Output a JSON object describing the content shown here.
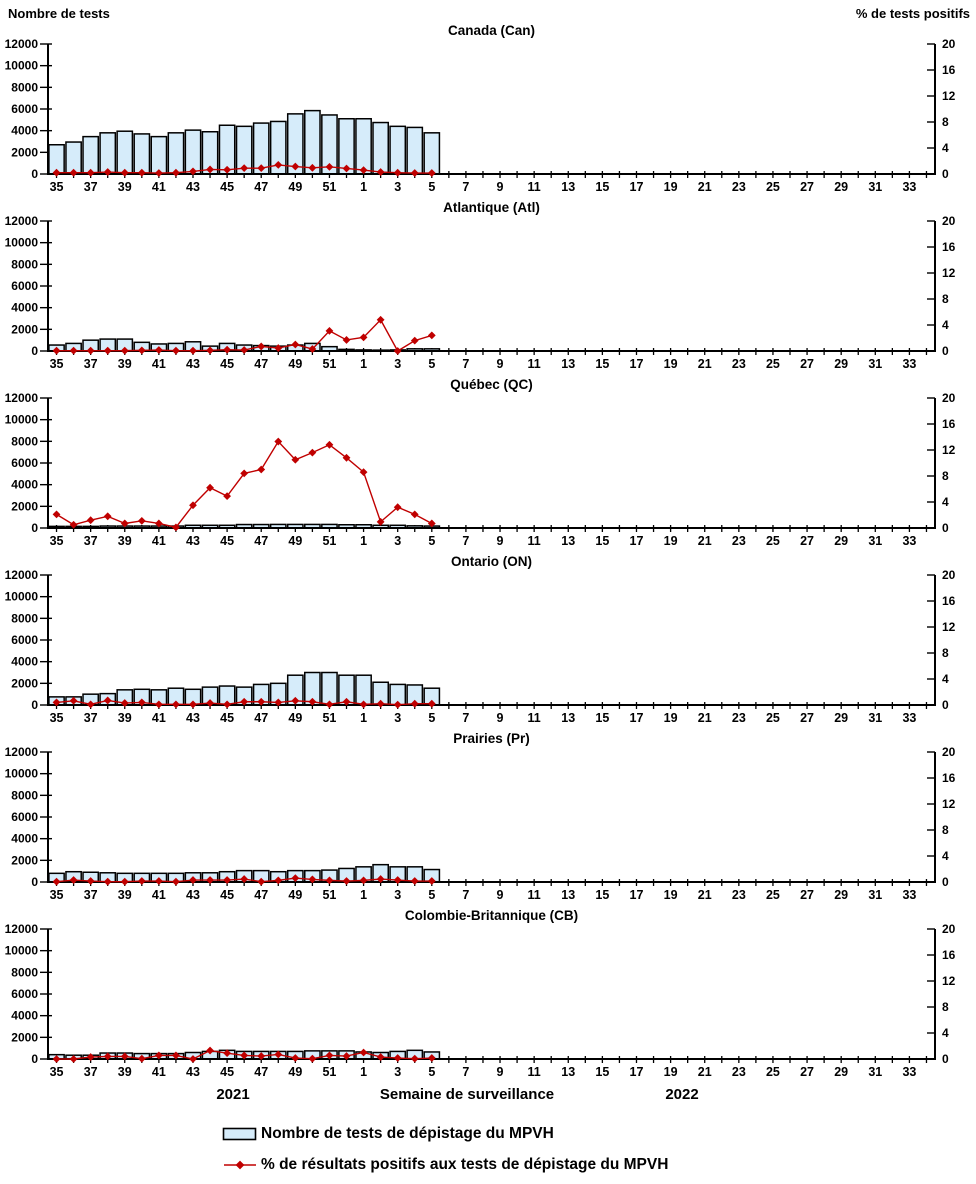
{
  "header": {
    "left_axis_title": "Nombre de tests",
    "right_axis_title": "% de tests positifs"
  },
  "footer": {
    "year_left": "2021",
    "xaxis_title": "Semaine de surveillance",
    "year_right": "2022",
    "legend": [
      {
        "swatch": "bar",
        "label": "Nombre de tests de dépistage du MPVH"
      },
      {
        "swatch": "line",
        "label": "% de résultats positifs aux tests de dépistage du MPVH"
      }
    ]
  },
  "colors": {
    "bar_fill": "#D6ECFA",
    "bar_border": "#000000",
    "line": "#C00000",
    "marker": "#C00000",
    "axis": "#000000"
  },
  "axes": {
    "left_ticks": [
      0,
      2000,
      4000,
      6000,
      8000,
      10000,
      12000
    ],
    "left_max": 12000,
    "right_ticks": [
      0,
      4,
      8,
      12,
      16,
      20
    ],
    "right_max": 20,
    "week_sequence": [
      35,
      36,
      37,
      38,
      39,
      40,
      41,
      42,
      43,
      44,
      45,
      46,
      47,
      48,
      49,
      50,
      51,
      52,
      1,
      2,
      3,
      4,
      5,
      6,
      7,
      8,
      9,
      10,
      11,
      12,
      13,
      14,
      15,
      16,
      17,
      18,
      19,
      20,
      21,
      22,
      23,
      24,
      25,
      26,
      27,
      28,
      29,
      30,
      31,
      32,
      33,
      34
    ],
    "labeled_weeks": [
      35,
      37,
      39,
      41,
      43,
      45,
      47,
      49,
      51,
      1,
      3,
      5,
      7,
      9,
      11,
      13,
      15,
      17,
      19,
      21,
      23,
      25,
      27,
      29,
      31,
      33
    ],
    "data_weeks": [
      35,
      36,
      37,
      38,
      39,
      40,
      41,
      42,
      43,
      44,
      45,
      46,
      47,
      48,
      49,
      50,
      51,
      52,
      1,
      2,
      3,
      4,
      5
    ]
  },
  "chart_data": [
    {
      "type": "bar",
      "title": "Canada (Can)",
      "ylabel_left": "Nombre de tests",
      "ylabel_right": "% de tests positifs",
      "ylim_left": [
        0,
        12000
      ],
      "ylim_right": [
        0,
        20
      ],
      "series": [
        {
          "name": "Nombre de tests de dépistage du MPVH",
          "axis": "left",
          "type": "bar",
          "values": [
            2700,
            2950,
            3450,
            3800,
            3950,
            3700,
            3450,
            3800,
            4050,
            3900,
            4500,
            4400,
            4700,
            4850,
            5550,
            5850,
            5450,
            5100,
            5100,
            4750,
            4400,
            4300,
            3800
          ]
        },
        {
          "name": "% de résultats positifs aux tests de dépistage du MPVH",
          "axis": "right",
          "type": "line",
          "values": [
            0.2,
            0.2,
            0.2,
            0.3,
            0.2,
            0.2,
            0.15,
            0.2,
            0.4,
            0.7,
            0.65,
            0.9,
            0.9,
            1.4,
            1.15,
            0.95,
            1.1,
            0.85,
            0.6,
            0.3,
            0.2,
            0.15,
            0.15
          ]
        }
      ]
    },
    {
      "type": "bar",
      "title": "Atlantique (Atl)",
      "ylim_left": [
        0,
        12000
      ],
      "ylim_right": [
        0,
        20
      ],
      "series": [
        {
          "name": "Nombre de tests de dépistage du MPVH",
          "axis": "left",
          "type": "bar",
          "values": [
            550,
            700,
            1000,
            1100,
            1100,
            800,
            650,
            700,
            850,
            450,
            700,
            550,
            500,
            450,
            550,
            700,
            400,
            150,
            100,
            80,
            100,
            200,
            200
          ]
        },
        {
          "name": "% de résultats positifs aux tests de dépistage du MPVH",
          "axis": "right",
          "type": "line",
          "values": [
            0.05,
            0.05,
            0.05,
            0.05,
            0.05,
            0.1,
            0.15,
            0.05,
            0.05,
            0.1,
            0.2,
            0.15,
            0.7,
            0.45,
            1.0,
            0.3,
            3.1,
            1.7,
            2.1,
            4.8,
            0.0,
            1.6,
            2.4
          ]
        }
      ]
    },
    {
      "type": "bar",
      "title": "Québec (QC)",
      "ylim_left": [
        0,
        12000
      ],
      "ylim_right": [
        0,
        20
      ],
      "series": [
        {
          "name": "Nombre de tests de dépistage du MPVH",
          "axis": "left",
          "type": "bar",
          "values": [
            150,
            150,
            150,
            180,
            180,
            180,
            180,
            180,
            250,
            250,
            250,
            320,
            320,
            330,
            330,
            330,
            330,
            300,
            300,
            250,
            250,
            200,
            180
          ]
        },
        {
          "name": "% de résultats positifs aux tests de dépistage du MPVH",
          "axis": "right",
          "type": "line",
          "values": [
            2.1,
            0.5,
            1.2,
            1.8,
            0.7,
            1.1,
            0.7,
            0.1,
            3.5,
            6.2,
            4.9,
            8.4,
            9.0,
            13.3,
            10.5,
            11.6,
            12.8,
            10.8,
            8.6,
            0.95,
            3.2,
            2.1,
            0.7
          ]
        }
      ]
    },
    {
      "type": "bar",
      "title": "Ontario (ON)",
      "ylim_left": [
        0,
        12000
      ],
      "ylim_right": [
        0,
        20
      ],
      "series": [
        {
          "name": "Nombre de tests de dépistage du MPVH",
          "axis": "left",
          "type": "bar",
          "values": [
            750,
            750,
            1000,
            1050,
            1400,
            1450,
            1400,
            1550,
            1450,
            1650,
            1750,
            1650,
            1900,
            2000,
            2750,
            3000,
            3000,
            2750,
            2750,
            2100,
            1900,
            1850,
            1550
          ]
        },
        {
          "name": "% de résultats positifs aux tests de dépistage du MPVH",
          "axis": "right",
          "type": "line",
          "values": [
            0.4,
            0.65,
            0.1,
            0.7,
            0.3,
            0.4,
            0.1,
            0.1,
            0.1,
            0.3,
            0.1,
            0.5,
            0.5,
            0.4,
            0.65,
            0.5,
            0.1,
            0.5,
            0.1,
            0.2,
            0.05,
            0.2,
            0.2
          ]
        }
      ]
    },
    {
      "type": "bar",
      "title": "Prairies (Pr)",
      "ylim_left": [
        0,
        12000
      ],
      "ylim_right": [
        0,
        20
      ],
      "series": [
        {
          "name": "Nombre de tests de dépistage du MPVH",
          "axis": "left",
          "type": "bar",
          "values": [
            800,
            950,
            900,
            850,
            800,
            800,
            800,
            800,
            850,
            850,
            950,
            1050,
            1050,
            950,
            1050,
            1050,
            1100,
            1250,
            1400,
            1600,
            1400,
            1400,
            1150
          ]
        },
        {
          "name": "% de résultats positifs aux tests de dépistage du MPVH",
          "axis": "right",
          "type": "line",
          "values": [
            0.05,
            0.3,
            0.15,
            0.05,
            0.05,
            0.15,
            0.15,
            0.05,
            0.3,
            0.3,
            0.3,
            0.45,
            0.05,
            0.25,
            0.6,
            0.4,
            0.25,
            0.15,
            0.25,
            0.45,
            0.3,
            0.15,
            0.15
          ]
        }
      ]
    },
    {
      "type": "bar",
      "title": "Colombie-Britannique (CB)",
      "ylim_left": [
        0,
        12000
      ],
      "ylim_right": [
        0,
        20
      ],
      "series": [
        {
          "name": "Nombre de tests de dépistage du MPVH",
          "axis": "left",
          "type": "bar",
          "values": [
            400,
            350,
            350,
            550,
            550,
            500,
            500,
            500,
            600,
            700,
            800,
            700,
            700,
            700,
            700,
            750,
            750,
            750,
            650,
            600,
            700,
            800,
            650
          ]
        },
        {
          "name": "% de résultats positifs aux tests de dépistage du MPVH",
          "axis": "right",
          "type": "line",
          "values": [
            0.0,
            0.0,
            0.3,
            0.4,
            0.4,
            0.05,
            0.55,
            0.55,
            0.0,
            1.3,
            0.9,
            0.55,
            0.45,
            0.7,
            0.15,
            0.05,
            0.55,
            0.45,
            1.0,
            0.3,
            0.15,
            0.05,
            0.15
          ]
        }
      ]
    }
  ]
}
